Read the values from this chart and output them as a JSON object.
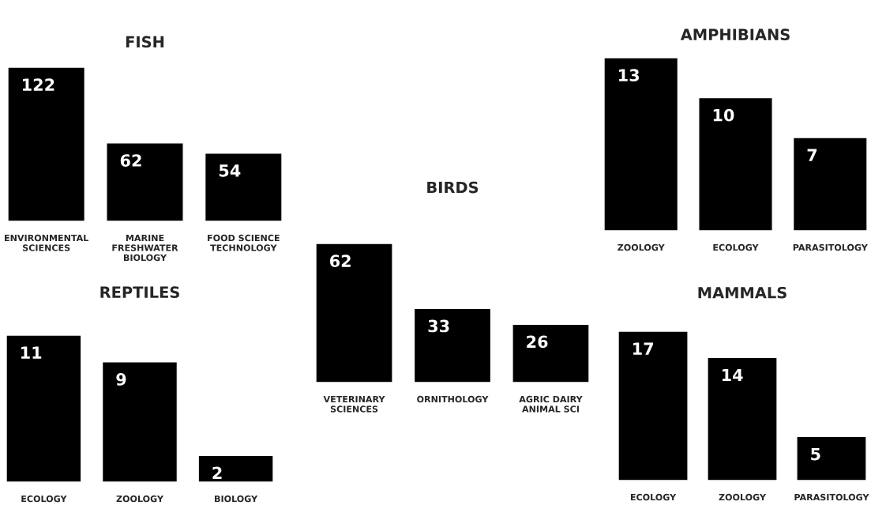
{
  "chart_data": [
    {
      "type": "bar",
      "title": "FISH",
      "categories": [
        "ENVIRONMENTAL SCIENCES",
        "MARINE FRESHWATER BIOLOGY",
        "FOOD SCIENCE TECHNOLOGY"
      ],
      "values": [
        122,
        62,
        54
      ],
      "color": "#000000",
      "data_labels": true
    },
    {
      "type": "bar",
      "title": "AMPHIBIANS",
      "categories": [
        "ZOOLOGY",
        "ECOLOGY",
        "PARASITOLOGY"
      ],
      "values": [
        13,
        10,
        7
      ],
      "color": "#000000",
      "data_labels": true
    },
    {
      "type": "bar",
      "title": "BIRDS",
      "categories": [
        "VETERINARY SCIENCES",
        "ORNITHOLOGY",
        "AGRIC DAIRY ANIMAL SCI"
      ],
      "values": [
        62,
        33,
        26
      ],
      "color": "#000000",
      "data_labels": true
    },
    {
      "type": "bar",
      "title": "REPTILES",
      "categories": [
        "ECOLOGY",
        "ZOOLOGY",
        "BIOLOGY"
      ],
      "values": [
        11,
        9,
        2
      ],
      "color": "#000000",
      "data_labels": true
    },
    {
      "type": "bar",
      "title": "MAMMALS",
      "categories": [
        "ECOLOGY",
        "ZOOLOGY",
        "PARASITOLOGY"
      ],
      "values": [
        17,
        14,
        5
      ],
      "color": "#000000",
      "data_labels": true
    }
  ]
}
